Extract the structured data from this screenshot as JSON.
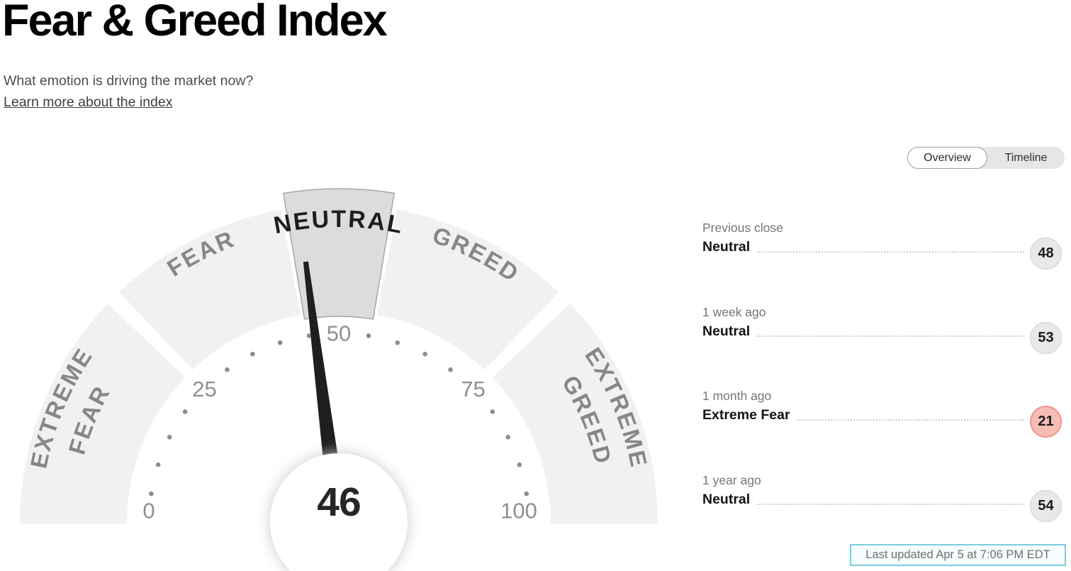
{
  "header": {
    "title": "Fear & Greed Index",
    "subtitle": "What emotion is driving the market now?",
    "link": "Learn more about the index"
  },
  "tabs": {
    "overview_label": "Overview",
    "timeline_label": "Timeline",
    "active": "Overview"
  },
  "chart_data": {
    "type": "gauge",
    "title": "Fear & Greed Index gauge",
    "min": 0,
    "max": 100,
    "value": 46,
    "value_label": "46",
    "current_sentiment": "Neutral",
    "axis_ticks": [
      0,
      25,
      50,
      75,
      100
    ],
    "dot_ticks": [
      5,
      10,
      15,
      20,
      30,
      35,
      40,
      45,
      55,
      60,
      65,
      70,
      80,
      85,
      90,
      95
    ],
    "segments": [
      {
        "label": "EXTREME FEAR",
        "start": 0,
        "end": 25,
        "active": false
      },
      {
        "label": "FEAR",
        "start": 25,
        "end": 45,
        "active": false
      },
      {
        "label": "NEUTRAL",
        "start": 45,
        "end": 55,
        "active": true
      },
      {
        "label": "GREED",
        "start": 55,
        "end": 75,
        "active": false
      },
      {
        "label": "EXTREME GREED",
        "start": 75,
        "end": 100,
        "active": false
      }
    ],
    "colors": {
      "segment": "#f1f1f2",
      "segment_active": "#dcdcdd",
      "segment_active_stroke": "#a6a6a6",
      "segment_label": "#878787",
      "segment_label_active": "#1e1e1e",
      "tick_dot": "#8d8d8d",
      "tick_number": "#8f8f8f",
      "needle": "#1f1f1f",
      "value_text": "#262626"
    }
  },
  "history": {
    "rows": [
      {
        "label": "Previous close",
        "sentiment": "Neutral",
        "score": "48",
        "tone": "neutral"
      },
      {
        "label": "1 week ago",
        "sentiment": "Neutral",
        "score": "53",
        "tone": "neutral"
      },
      {
        "label": "1 month ago",
        "sentiment": "Extreme Fear",
        "score": "21",
        "tone": "extreme-fear"
      },
      {
        "label": "1 year ago",
        "sentiment": "Neutral",
        "score": "54",
        "tone": "neutral"
      }
    ]
  },
  "footer": {
    "last_updated": "Last updated Apr 5 at 7:06 PM EDT"
  }
}
